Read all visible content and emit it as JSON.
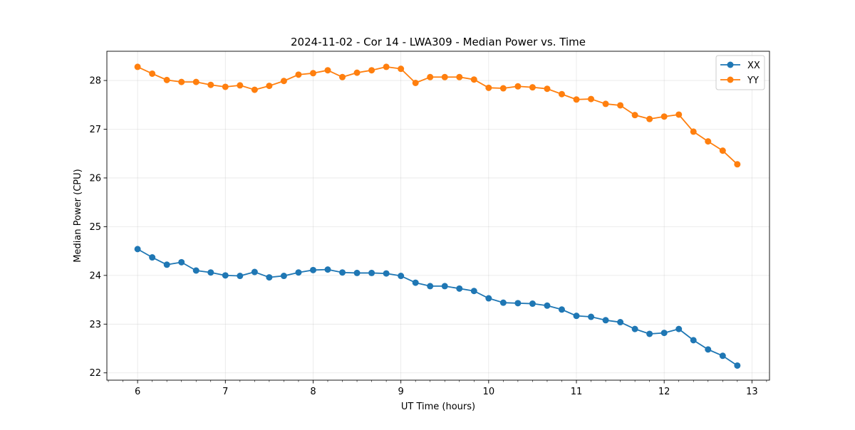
{
  "chart_data": {
    "type": "line",
    "title": "2024-11-02 - Cor 14 - LWA309 - Median Power vs. Time",
    "xlabel": "UT Time (hours)",
    "ylabel": "Median Power (CPU)",
    "xlim": [
      5.65,
      13.2
    ],
    "ylim": [
      21.85,
      28.6
    ],
    "xticks": [
      6,
      7,
      8,
      9,
      10,
      11,
      12,
      13
    ],
    "xtick_labels": [
      "6",
      "7",
      "8",
      "9",
      "10",
      "11",
      "12",
      "13"
    ],
    "yticks": [
      22,
      23,
      24,
      25,
      26,
      27,
      28
    ],
    "ytick_labels": [
      "22",
      "23",
      "24",
      "25",
      "26",
      "27",
      "28"
    ],
    "grid": true,
    "legend_position": "upper right",
    "x": [
      6.0,
      6.1667,
      6.3333,
      6.5,
      6.6667,
      6.8333,
      7.0,
      7.1667,
      7.3333,
      7.5,
      7.6667,
      7.8333,
      8.0,
      8.1667,
      8.3333,
      8.5,
      8.6667,
      8.8333,
      9.0,
      9.1667,
      9.3333,
      9.5,
      9.6667,
      9.8333,
      10.0,
      10.1667,
      10.3333,
      10.5,
      10.6667,
      10.8333,
      11.0,
      11.1667,
      11.3333,
      11.5,
      11.6667,
      11.8333,
      12.0,
      12.1667,
      12.3333,
      12.5,
      12.6667,
      12.8333
    ],
    "series": [
      {
        "name": "XX",
        "color": "#1f77b4",
        "values": [
          24.54,
          24.37,
          24.22,
          24.27,
          24.1,
          24.06,
          24.0,
          23.99,
          24.07,
          23.96,
          23.99,
          24.06,
          24.11,
          24.12,
          24.06,
          24.05,
          24.05,
          24.04,
          23.99,
          23.85,
          23.78,
          23.78,
          23.73,
          23.68,
          23.53,
          23.44,
          23.43,
          23.42,
          23.38,
          23.3,
          23.17,
          23.15,
          23.08,
          23.04,
          22.9,
          22.8,
          22.82,
          22.9,
          22.67,
          22.48,
          22.35,
          22.15
        ]
      },
      {
        "name": "YY",
        "color": "#ff7f0e",
        "values": [
          28.28,
          28.14,
          28.01,
          27.97,
          27.97,
          27.91,
          27.87,
          27.9,
          27.81,
          27.89,
          27.99,
          28.12,
          28.15,
          28.21,
          28.07,
          28.16,
          28.21,
          28.28,
          28.24,
          27.95,
          28.07,
          28.07,
          28.07,
          28.02,
          27.85,
          27.84,
          27.88,
          27.86,
          27.83,
          27.72,
          27.61,
          27.62,
          27.52,
          27.49,
          27.29,
          27.21,
          27.26,
          27.3,
          26.95,
          26.75,
          26.56,
          26.28
        ]
      }
    ]
  }
}
